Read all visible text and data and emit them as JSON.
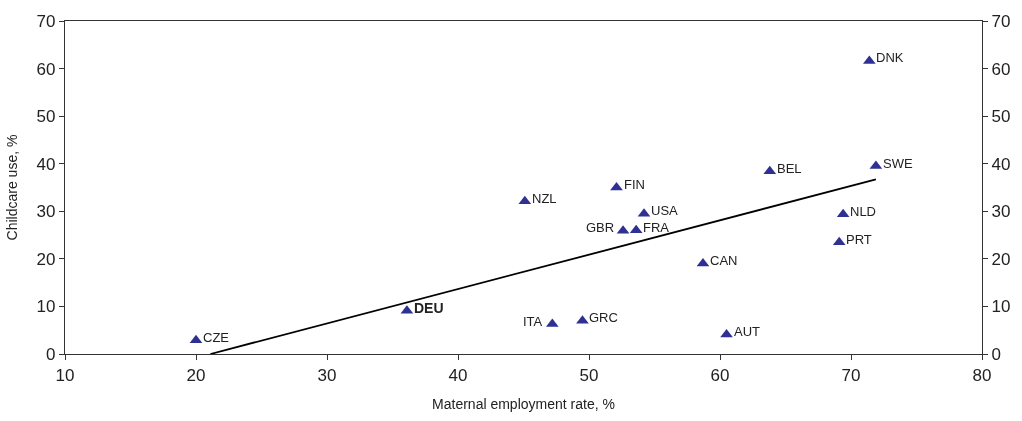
{
  "chart_data": {
    "type": "scatter",
    "xlabel": "Maternal employment rate, %",
    "ylabel": "Childcare use, %",
    "series": [
      {
        "color": "#2e3192",
        "marker": "triangle",
        "x": [
          20.0,
          36.1,
          45.1,
          52.1,
          54.2,
          52.6,
          53.6,
          47.2,
          49.5,
          58.7,
          60.5,
          63.8,
          71.4,
          71.9,
          69.4,
          69.1
        ],
        "values": [
          2.9,
          9.1,
          32.1,
          35.0,
          29.5,
          25.9,
          26.0,
          6.3,
          7.0,
          19.0,
          4.1,
          38.4,
          61.6,
          39.5,
          29.4,
          23.5
        ]
      },
      {
        "type": "line",
        "color": "#000000",
        "marker": "none",
        "x": [
          21.1,
          71.9
        ],
        "values": [
          0,
          36.7
        ]
      }
    ],
    "annotations": [
      {
        "text": "CZE",
        "x": 20.0,
        "y": 2.9
      },
      {
        "text": "DEU",
        "x": 36.1,
        "y": 9.1
      },
      {
        "text": "NZL",
        "x": 45.1,
        "y": 32.1
      },
      {
        "text": "FIN",
        "x": 52.1,
        "y": 35.0
      },
      {
        "text": "USA",
        "x": 54.2,
        "y": 29.5
      },
      {
        "text": "GBR",
        "x": 52.6,
        "y": 25.9
      },
      {
        "text": "FRA",
        "x": 53.6,
        "y": 26.0
      },
      {
        "text": "ITA",
        "x": 47.2,
        "y": 6.3
      },
      {
        "text": "GRC",
        "x": 49.5,
        "y": 7.0
      },
      {
        "text": "CAN",
        "x": 58.7,
        "y": 19.0
      },
      {
        "text": "AUT",
        "x": 60.5,
        "y": 4.1
      },
      {
        "text": "BEL",
        "x": 63.8,
        "y": 38.4
      },
      {
        "text": "DNK",
        "x": 71.4,
        "y": 61.6
      },
      {
        "text": "SWE",
        "x": 71.9,
        "y": 39.5
      },
      {
        "text": "NLD",
        "x": 69.4,
        "y": 29.4
      },
      {
        "text": "PRT",
        "x": 69.1,
        "y": 23.5
      }
    ],
    "xlim": [
      10,
      80
    ],
    "xticks": [
      10,
      20,
      30,
      40,
      50,
      60,
      70,
      80
    ],
    "ylim": [
      0,
      70
    ],
    "yticks": [
      0,
      10,
      20,
      30,
      40,
      50,
      60,
      70
    ],
    "y2lim": [
      0,
      70
    ],
    "y2ticks": [
      0,
      10,
      20,
      30,
      40,
      50,
      60,
      70
    ]
  }
}
